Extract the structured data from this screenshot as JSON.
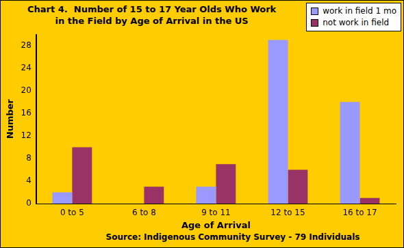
{
  "chart_data": {
    "type": "bar",
    "title": [
      "Chart 4.  Number of 15 to 17 Year Olds Who Work",
      "in the Field by Age of Arrival in the US"
    ],
    "x_label": "Age of Arrival",
    "y_label": "Number",
    "annotations": [
      "Source: Indigenous Community Survey - 79 Individuals"
    ],
    "categories": [
      "0 to 5",
      "6 to 8",
      "9 to 11",
      "12 to 15",
      "16 to 17"
    ],
    "series": [
      {
        "name": "work in field 1 mo",
        "color": "#9999FF",
        "values": [
          2,
          0,
          3,
          29,
          18
        ]
      },
      {
        "name": "not work in field",
        "color": "#993366",
        "values": [
          10,
          3,
          7,
          6,
          1
        ]
      }
    ],
    "ylim": [
      0,
      30
    ],
    "yticks": [
      0,
      4,
      8,
      12,
      16,
      20,
      24,
      28
    ],
    "grid": false,
    "legend": "top-right"
  }
}
